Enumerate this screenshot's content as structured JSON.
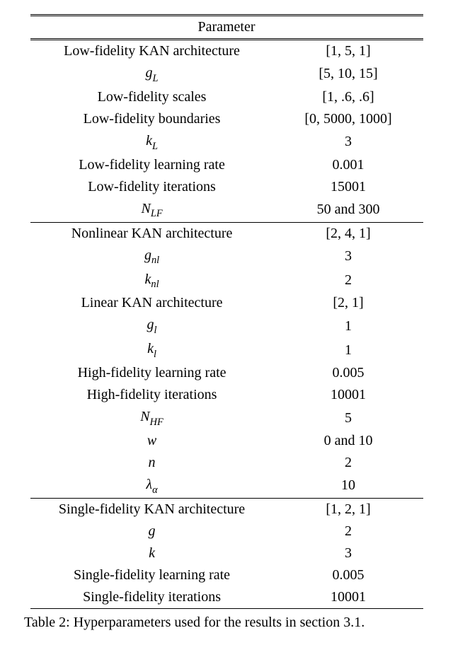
{
  "table": {
    "header": "Parameter",
    "border_color": "#000000",
    "background_color": "#ffffff",
    "text_color": "#000000",
    "fontsize": 20,
    "col_widths_pct": [
      62,
      38
    ],
    "alignments": [
      "center",
      "center"
    ],
    "sections": [
      {
        "rows": [
          {
            "param_html": "Low-fidelity KAN architecture",
            "value": "[1, 5, 1]"
          },
          {
            "param_html": "<span class=\"ital\">g</span><span class=\"sub\">L</span>",
            "value": "[5, 10, 15]"
          },
          {
            "param_html": "Low-fidelity scales",
            "value": "[1, .6, .6]"
          },
          {
            "param_html": "Low-fidelity boundaries",
            "value": "[0, 5000, 1000]"
          },
          {
            "param_html": "<span class=\"ital\">k</span><span class=\"sub\">L</span>",
            "value": "3"
          },
          {
            "param_html": "Low-fidelity learning rate",
            "value": "0.001"
          },
          {
            "param_html": "Low-fidelity iterations",
            "value": "15001"
          },
          {
            "param_html": "<span class=\"ital\">N</span><span class=\"sub\">LF</span>",
            "value": "50 and 300"
          }
        ]
      },
      {
        "rows": [
          {
            "param_html": "Nonlinear KAN architecture",
            "value": "[2, 4, 1]"
          },
          {
            "param_html": "<span class=\"ital\">g</span><span class=\"sub\">nl</span>",
            "value": "3"
          },
          {
            "param_html": "<span class=\"ital\">k</span><span class=\"sub\">nl</span>",
            "value": "2"
          },
          {
            "param_html": "Linear KAN architecture",
            "value": "[2, 1]"
          },
          {
            "param_html": "<span class=\"ital\">g</span><span class=\"sub\">l</span>",
            "value": "1"
          },
          {
            "param_html": "<span class=\"ital\">k</span><span class=\"sub\">l</span>",
            "value": "1"
          },
          {
            "param_html": "High-fidelity learning rate",
            "value": "0.005"
          },
          {
            "param_html": "High-fidelity iterations",
            "value": "10001"
          },
          {
            "param_html": "<span class=\"ital\">N</span><span class=\"sub\">HF</span>",
            "value": "5"
          },
          {
            "param_html": "<span class=\"ital\">w</span>",
            "value": "0 and 10"
          },
          {
            "param_html": "<span class=\"ital\">n</span>",
            "value": "2"
          },
          {
            "param_html": "<span class=\"ital\">λ</span><span class=\"sub\">α</span>",
            "value": "10"
          }
        ]
      },
      {
        "rows": [
          {
            "param_html": "Single-fidelity KAN architecture",
            "value": "[1, 2, 1]"
          },
          {
            "param_html": "<span class=\"ital\">g</span>",
            "value": "2"
          },
          {
            "param_html": "<span class=\"ital\">k</span>",
            "value": "3"
          },
          {
            "param_html": "Single-fidelity learning rate",
            "value": "0.005"
          },
          {
            "param_html": "Single-fidelity iterations",
            "value": "10001"
          }
        ]
      }
    ]
  },
  "caption": "Table 2: Hyperparameters used for the results in section 3.1."
}
